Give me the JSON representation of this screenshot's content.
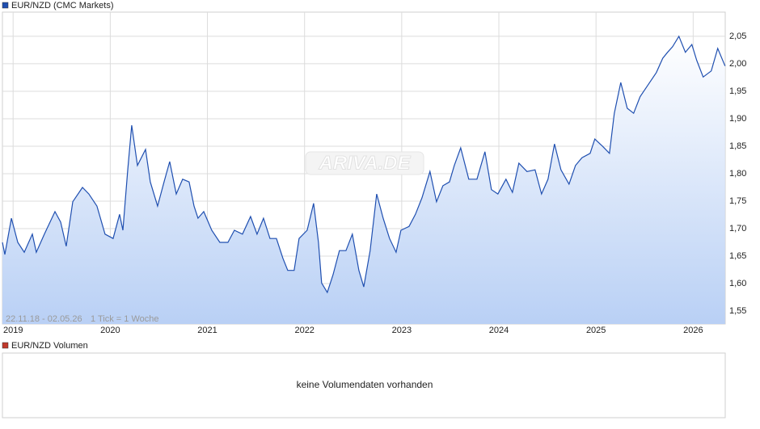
{
  "chart_data": {
    "type": "line",
    "series": [
      {
        "name": "EUR/NZD (CMC Markets)",
        "color": "#1f4fb0",
        "values": [
          1.675,
          1.653,
          1.719,
          1.675,
          1.657,
          1.69,
          1.657,
          1.69,
          1.731,
          1.712,
          1.668,
          1.749,
          1.775,
          1.763,
          1.741,
          1.69,
          1.682,
          1.726,
          1.697,
          1.807,
          1.888,
          1.815,
          1.844,
          1.785,
          1.741,
          1.785,
          1.822,
          1.763,
          1.79,
          1.785,
          1.741,
          1.719,
          1.731,
          1.697,
          1.675,
          1.675,
          1.697,
          1.69,
          1.722,
          1.69,
          1.719,
          1.682,
          1.682,
          1.646,
          1.624,
          1.624,
          1.682,
          1.697,
          1.746,
          1.675,
          1.601,
          1.584,
          1.616,
          1.66,
          1.66,
          1.69,
          1.624,
          1.594,
          1.66,
          1.763,
          1.719,
          1.682,
          1.657,
          1.697,
          1.704,
          1.726,
          1.756,
          1.804,
          1.749,
          1.778,
          1.785,
          1.815,
          1.847,
          1.79,
          1.79,
          1.84,
          1.771,
          1.763,
          1.79,
          1.766,
          1.819,
          1.804,
          1.807,
          1.763,
          1.79,
          1.854,
          1.807,
          1.781,
          1.815,
          1.829,
          1.837,
          1.863,
          1.849,
          1.837,
          1.91,
          1.966,
          1.919,
          1.91,
          1.94,
          1.962,
          1.984,
          2.01,
          2.021,
          2.031,
          2.05,
          2.021,
          2.035,
          2.006,
          1.976,
          1.987,
          2.028,
          1.996
        ]
      }
    ],
    "x": [
      2018.89,
      2018.915,
      2018.982,
      2019.048,
      2019.115,
      2019.198,
      2019.239,
      2019.322,
      2019.431,
      2019.489,
      2019.547,
      2019.614,
      2019.714,
      2019.78,
      2019.863,
      2019.946,
      2020.029,
      2020.096,
      2020.13,
      2020.18,
      2020.221,
      2020.28,
      2020.363,
      2020.412,
      2020.487,
      2020.554,
      2020.612,
      2020.679,
      2020.745,
      2020.812,
      2020.862,
      2020.903,
      2020.962,
      2021.045,
      2021.128,
      2021.211,
      2021.278,
      2021.361,
      2021.444,
      2021.511,
      2021.577,
      2021.644,
      2021.71,
      2021.777,
      2021.827,
      2021.893,
      2021.943,
      2022.027,
      2022.093,
      2022.143,
      2022.176,
      2022.234,
      2022.293,
      2022.359,
      2022.426,
      2022.492,
      2022.559,
      2022.609,
      2022.675,
      2022.742,
      2022.809,
      2022.875,
      2022.942,
      2022.992,
      2023.075,
      2023.141,
      2023.208,
      2023.291,
      2023.358,
      2023.424,
      2023.491,
      2023.541,
      2023.607,
      2023.69,
      2023.774,
      2023.857,
      2023.923,
      2023.99,
      2024.073,
      2024.14,
      2024.206,
      2024.289,
      2024.373,
      2024.439,
      2024.506,
      2024.572,
      2024.639,
      2024.722,
      2024.789,
      2024.855,
      2024.939,
      2024.988,
      2025.072,
      2025.138,
      2025.188,
      2025.255,
      2025.321,
      2025.387,
      2025.454,
      2025.537,
      2025.621,
      2025.687,
      2025.737,
      2025.787,
      2025.853,
      2025.92,
      2025.986,
      2026.037,
      2026.103,
      2026.186,
      2026.253,
      2026.328
    ],
    "xlim": [
      2018.89,
      2026.33
    ],
    "xticks": [
      2019,
      2020,
      2021,
      2022,
      2023,
      2024,
      2025,
      2026
    ],
    "ylim": [
      1.5265,
      2.094
    ],
    "yticks": [
      {
        "value": 1.55,
        "label": "1,55"
      },
      {
        "value": 1.6,
        "label": "1,60"
      },
      {
        "value": 1.65,
        "label": "1,65"
      },
      {
        "value": 1.7,
        "label": "1,70"
      },
      {
        "value": 1.75,
        "label": "1,75"
      },
      {
        "value": 1.8,
        "label": "1,80"
      },
      {
        "value": 1.85,
        "label": "1,85"
      },
      {
        "value": 1.9,
        "label": "1,90"
      },
      {
        "value": 1.95,
        "label": "1,95"
      },
      {
        "value": 2.0,
        "label": "2,00"
      },
      {
        "value": 2.05,
        "label": "2,05"
      }
    ],
    "grid": true,
    "range_label": "22.11.18 - 02.05.26",
    "tick_label": "1 Tick = 1 Woche",
    "watermark": "ARIVA.DE"
  },
  "volume_panel": {
    "legend": "EUR/NZD Volumen",
    "color": "#c0392b",
    "message": "keine Volumendaten vorhanden"
  }
}
